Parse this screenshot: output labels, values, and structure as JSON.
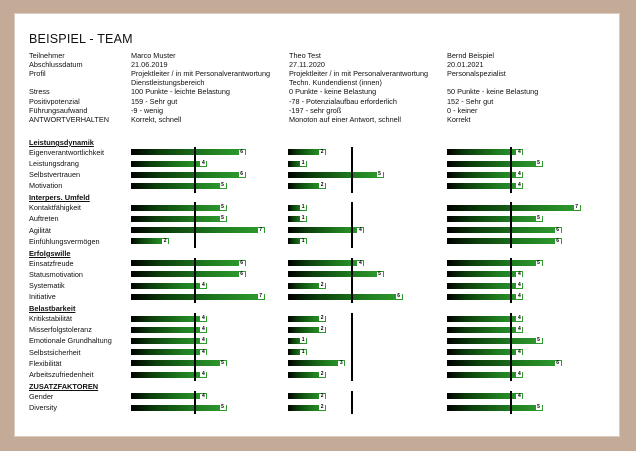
{
  "title": "BEISPIEL - TEAM",
  "info_rows": [
    {
      "label": "Teilnehmer",
      "values": [
        "Marco Muster",
        "Theo Test",
        "Bernd Beispiel"
      ]
    },
    {
      "label": "Abschlussdatum",
      "values": [
        "21.06.2019",
        "27.11.2020",
        "20.01.2021"
      ]
    },
    {
      "label": "Profil",
      "values": [
        "Projektleiter / in mit Personalverantwortung",
        "Projektleiter / in mit Personalverantwortung",
        "Personalspezialist"
      ]
    },
    {
      "label": "",
      "values": [
        "Dienstleistungsbereich",
        "Techn. Kundendienst (innen)",
        ""
      ]
    },
    {
      "label": "Stress",
      "values": [
        "100 Punkte - leichte Belastung",
        "0 Punkte - keine Belastung",
        "50 Punkte - keine Belastung"
      ]
    },
    {
      "label": "Positivpotenzial",
      "values": [
        "159 - Sehr gut",
        "-78 - Potenzialaufbau erforderlich",
        "152 - Sehr gut"
      ]
    },
    {
      "label": "Führungsaufwand",
      "values": [
        "-9 - wenig",
        "-197 - sehr groß",
        "0 - keiner"
      ]
    },
    {
      "label": "ANTWORTVERHALTEN",
      "values": [
        "Korrekt, schnell",
        "Monoton auf einer Antwort, schnell",
        "Korrekt"
      ]
    }
  ],
  "scale_max": 7,
  "reference_lines": [
    {
      "group": "Leistungsdynamik",
      "values": [
        4,
        4,
        4
      ]
    },
    {
      "group": "Interpers. Umfeld",
      "values": [
        4,
        4,
        4
      ]
    },
    {
      "group": "Erfolgswille",
      "values": [
        4,
        4,
        4
      ]
    },
    {
      "group": "Belastbarkeit",
      "values": [
        4,
        4,
        4
      ]
    },
    {
      "group": "ZUSATZFAKTOREN",
      "values": [
        4,
        4,
        4
      ]
    }
  ],
  "groups": [
    {
      "title": "Leistungsdynamik",
      "rows": [
        {
          "label": "Eigenverantwortlichkeit",
          "values": [
            6,
            2,
            4
          ]
        },
        {
          "label": "Leistungsdrang",
          "values": [
            4,
            1,
            5
          ]
        },
        {
          "label": "Selbstvertrauen",
          "values": [
            6,
            5,
            4
          ]
        },
        {
          "label": "Motivation",
          "values": [
            5,
            2,
            4
          ]
        }
      ]
    },
    {
      "title": "Interpers. Umfeld",
      "rows": [
        {
          "label": "Kontaktfähigkeit",
          "values": [
            5,
            1,
            7
          ]
        },
        {
          "label": "Auftreten",
          "values": [
            5,
            1,
            5
          ]
        },
        {
          "label": "Agilität",
          "values": [
            7,
            4,
            6
          ]
        },
        {
          "label": "Einfühlungsvermögen",
          "values": [
            2,
            1,
            6
          ]
        }
      ]
    },
    {
      "title": "Erfolgswille",
      "rows": [
        {
          "label": "Einsatzfreude",
          "values": [
            6,
            4,
            5
          ]
        },
        {
          "label": "Statusmotivation",
          "values": [
            6,
            5,
            4
          ]
        },
        {
          "label": "Systematik",
          "values": [
            4,
            2,
            4
          ]
        },
        {
          "label": "Initiative",
          "values": [
            7,
            6,
            4
          ]
        }
      ]
    },
    {
      "title": "Belastbarkeit",
      "rows": [
        {
          "label": "Kritikstabilität",
          "values": [
            4,
            2,
            4
          ]
        },
        {
          "label": "Misserfolgstoleranz",
          "values": [
            4,
            2,
            4
          ]
        },
        {
          "label": "Emotionale Grundhaltung",
          "values": [
            4,
            1,
            5
          ]
        },
        {
          "label": "Selbstsicherheit",
          "values": [
            4,
            1,
            4
          ]
        },
        {
          "label": "Flexibilität",
          "values": [
            5,
            3,
            6
          ]
        },
        {
          "label": "Arbeitszufriedenheit",
          "values": [
            4,
            2,
            4
          ]
        }
      ]
    },
    {
      "title": "ZUSATZFAKTOREN",
      "rows": [
        {
          "label": "Gender",
          "values": [
            4,
            2,
            4
          ]
        },
        {
          "label": "Diversity",
          "values": [
            5,
            2,
            5
          ]
        }
      ]
    }
  ]
}
